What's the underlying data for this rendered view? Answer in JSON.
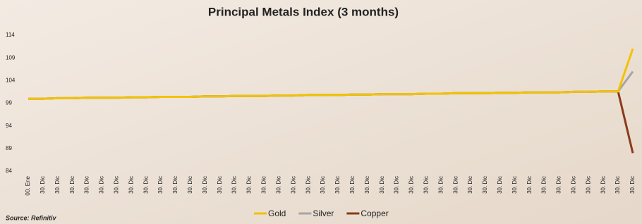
{
  "chart_data": {
    "type": "line",
    "title": "Principal Metals Index (3 months)",
    "source": "Source: Refinitiv",
    "categories": [
      "00. Ene",
      "30. Dic",
      "30. Dic",
      "30. Dic",
      "30. Dic",
      "30. Dic",
      "30. Dic",
      "30. Dic",
      "30. Dic",
      "30. Dic",
      "30. Dic",
      "30. Dic",
      "30. Dic",
      "30. Dic",
      "30. Dic",
      "30. Dic",
      "30. Dic",
      "30. Dic",
      "30. Dic",
      "30. Dic",
      "30. Dic",
      "30. Dic",
      "30. Dic",
      "30. Dic",
      "30. Dic",
      "30. Dic",
      "30. Dic",
      "30. Dic",
      "30. Dic",
      "30. Dic",
      "30. Dic",
      "30. Dic",
      "30. Dic",
      "30. Dic",
      "30. Dic",
      "30. Dic",
      "30. Dic",
      "30. Dic",
      "30. Dic",
      "30. Dic",
      "30. Dic",
      "30. Dic"
    ],
    "series": [
      {
        "name": "Gold",
        "color": "#f2c200",
        "values": [
          100.0,
          100.0,
          100.1,
          100.1,
          100.2,
          100.2,
          100.2,
          100.3,
          100.3,
          100.4,
          100.4,
          100.4,
          100.5,
          100.5,
          100.6,
          100.6,
          100.6,
          100.7,
          100.7,
          100.8,
          100.8,
          100.8,
          100.9,
          100.9,
          101.0,
          101.0,
          101.0,
          101.1,
          101.1,
          101.2,
          101.2,
          101.2,
          101.3,
          101.3,
          101.4,
          101.4,
          101.4,
          101.5,
          101.5,
          101.6,
          101.6,
          111.0
        ]
      },
      {
        "name": "Silver",
        "color": "#a6a6a6",
        "values": [
          100.0,
          100.0,
          100.1,
          100.1,
          100.2,
          100.2,
          100.2,
          100.3,
          100.3,
          100.4,
          100.4,
          100.4,
          100.5,
          100.5,
          100.6,
          100.6,
          100.6,
          100.7,
          100.7,
          100.8,
          100.8,
          100.8,
          100.9,
          100.9,
          101.0,
          101.0,
          101.0,
          101.1,
          101.1,
          101.2,
          101.2,
          101.2,
          101.3,
          101.3,
          101.4,
          101.4,
          101.4,
          101.5,
          101.5,
          101.6,
          101.6,
          106.0
        ]
      },
      {
        "name": "Copper",
        "color": "#8b3a1a",
        "values": [
          100.0,
          100.0,
          100.1,
          100.1,
          100.2,
          100.2,
          100.2,
          100.3,
          100.3,
          100.4,
          100.4,
          100.4,
          100.5,
          100.5,
          100.6,
          100.6,
          100.6,
          100.7,
          100.7,
          100.8,
          100.8,
          100.8,
          100.9,
          100.9,
          101.0,
          101.0,
          101.0,
          101.1,
          101.1,
          101.2,
          101.2,
          101.2,
          101.3,
          101.3,
          101.4,
          101.4,
          101.4,
          101.5,
          101.5,
          101.6,
          101.6,
          88.0
        ]
      }
    ],
    "ylim": [
      84,
      114
    ],
    "yticks": [
      84,
      89,
      94,
      99,
      104,
      109,
      114
    ]
  }
}
